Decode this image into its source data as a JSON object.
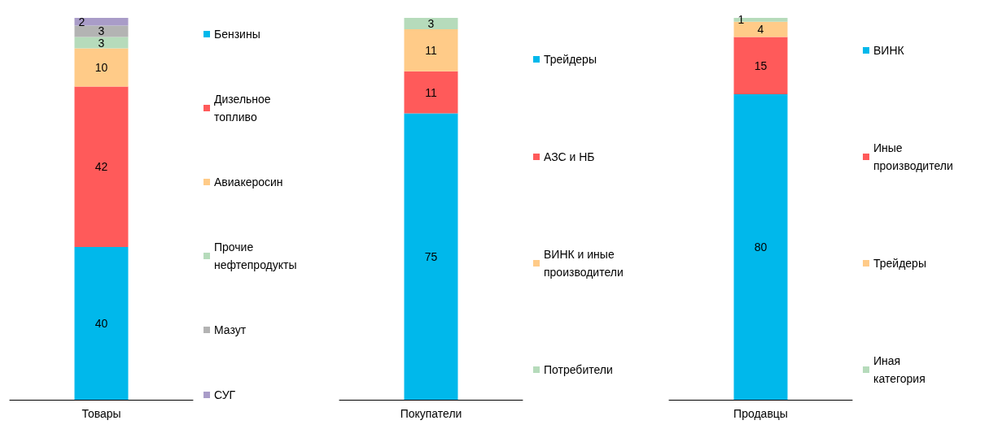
{
  "chart_data": [
    {
      "type": "bar",
      "stacked": true,
      "categories": [
        "Товары"
      ],
      "data_labels": true,
      "legend": "right",
      "series": [
        {
          "name": "Бензины",
          "color": "#00b8eb",
          "values": [
            40
          ]
        },
        {
          "name": "Дизельное топливо",
          "color": "#ff5a5a",
          "values": [
            42
          ]
        },
        {
          "name": "Авиакеросин",
          "color": "#ffcb88",
          "values": [
            10
          ]
        },
        {
          "name": "Прочие нефтепродукты",
          "color": "#b6dbbb",
          "values": [
            3
          ]
        },
        {
          "name": "Мазут",
          "color": "#b3b3b3",
          "values": [
            3
          ]
        },
        {
          "name": "СУГ",
          "color": "#a99cc8",
          "values": [
            2
          ]
        }
      ]
    },
    {
      "type": "bar",
      "stacked": true,
      "categories": [
        "Покупатели"
      ],
      "data_labels": true,
      "legend": "right",
      "series": [
        {
          "name": "Трейдеры",
          "color": "#00b8eb",
          "values": [
            75
          ]
        },
        {
          "name": "АЗС и НБ",
          "color": "#ff5a5a",
          "values": [
            11
          ]
        },
        {
          "name": "ВИНК и иные производители",
          "color": "#ffcb88",
          "values": [
            11
          ]
        },
        {
          "name": "Потребители",
          "color": "#b6dbbb",
          "values": [
            3
          ]
        }
      ]
    },
    {
      "type": "bar",
      "stacked": true,
      "categories": [
        "Продавцы"
      ],
      "data_labels": true,
      "legend": "right",
      "series": [
        {
          "name": "ВИНК",
          "color": "#00b8eb",
          "values": [
            80
          ]
        },
        {
          "name": "Иные производители",
          "color": "#ff5a5a",
          "values": [
            15
          ]
        },
        {
          "name": "Трейдеры",
          "color": "#ffcb88",
          "values": [
            4
          ]
        },
        {
          "name": "Иная категория",
          "color": "#b6dbbb",
          "values": [
            1
          ]
        }
      ]
    }
  ]
}
